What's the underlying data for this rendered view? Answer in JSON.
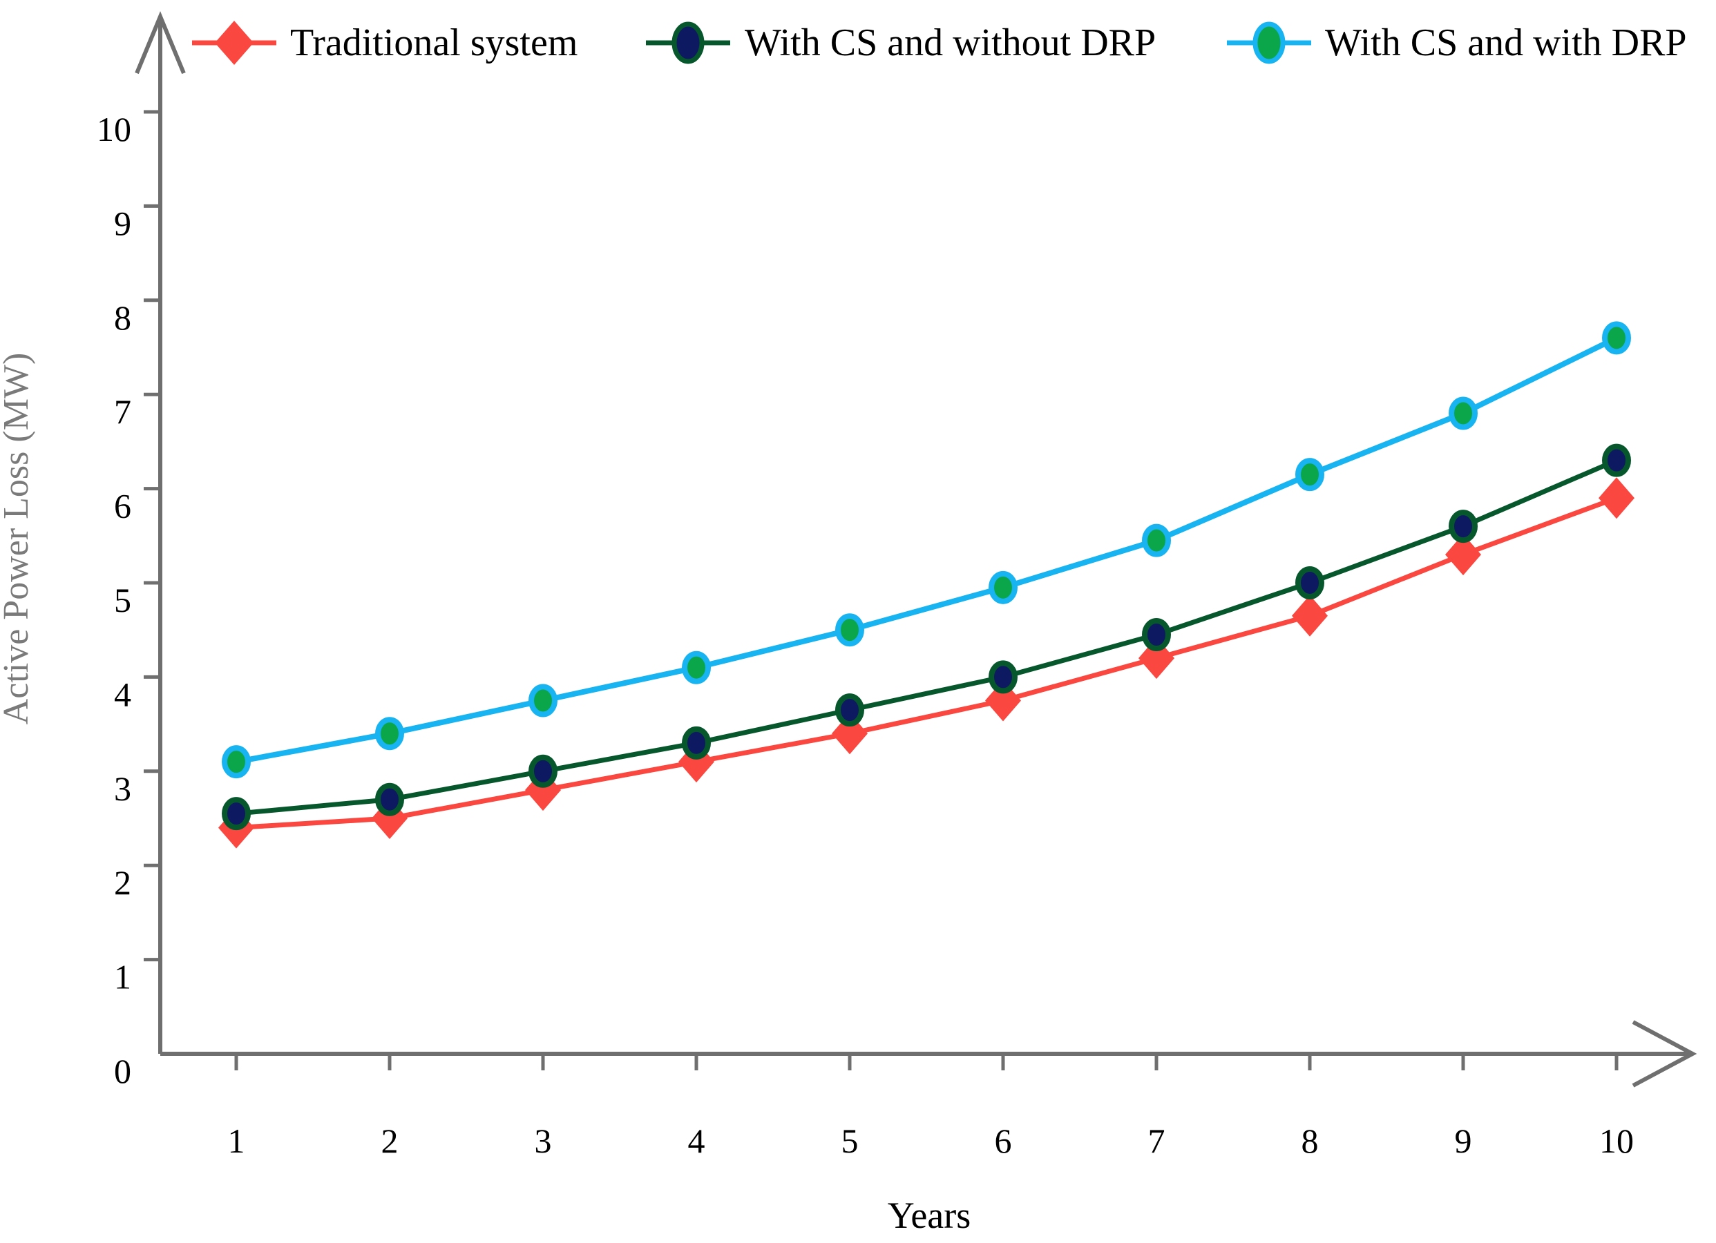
{
  "chart_data": {
    "type": "line",
    "title": "",
    "xlabel": "Years",
    "ylabel": "Active Power Loss (MW)",
    "x": [
      1,
      2,
      3,
      4,
      5,
      6,
      7,
      8,
      9,
      10
    ],
    "y_ticks": [
      0,
      1,
      2,
      3,
      4,
      5,
      6,
      7,
      8,
      9,
      10
    ],
    "xlim": [
      0,
      10.5
    ],
    "ylim": [
      0,
      10.95
    ],
    "grid": false,
    "legend_position": "top",
    "axis_color": "#6F6F6F",
    "tick_label_color": "#000000",
    "ylabel_color": "#7A7A7A",
    "xlabel_color": "#000000",
    "series": [
      {
        "name": "Traditional system",
        "marker": "diamond",
        "line_color": "#FA473F",
        "marker_fill": "#FA473F",
        "marker_edge": "#FA473F",
        "values": [
          2.4,
          2.5,
          2.8,
          3.1,
          3.4,
          3.75,
          4.2,
          4.65,
          5.3,
          5.9
        ]
      },
      {
        "name": "With CS and without DRP",
        "marker": "circle",
        "line_color": "#07572C",
        "marker_fill": "#0D1A62",
        "marker_edge": "#07572C",
        "values": [
          2.55,
          2.7,
          3.0,
          3.3,
          3.65,
          4.0,
          4.45,
          5.0,
          5.6,
          6.3
        ]
      },
      {
        "name": "With CS and with DRP",
        "marker": "circle",
        "line_color": "#18B4F1",
        "marker_fill": "#0BA64A",
        "marker_edge": "#18B4F1",
        "values": [
          3.1,
          3.4,
          3.75,
          4.1,
          4.5,
          4.95,
          5.45,
          6.15,
          6.8,
          7.6
        ]
      }
    ]
  }
}
